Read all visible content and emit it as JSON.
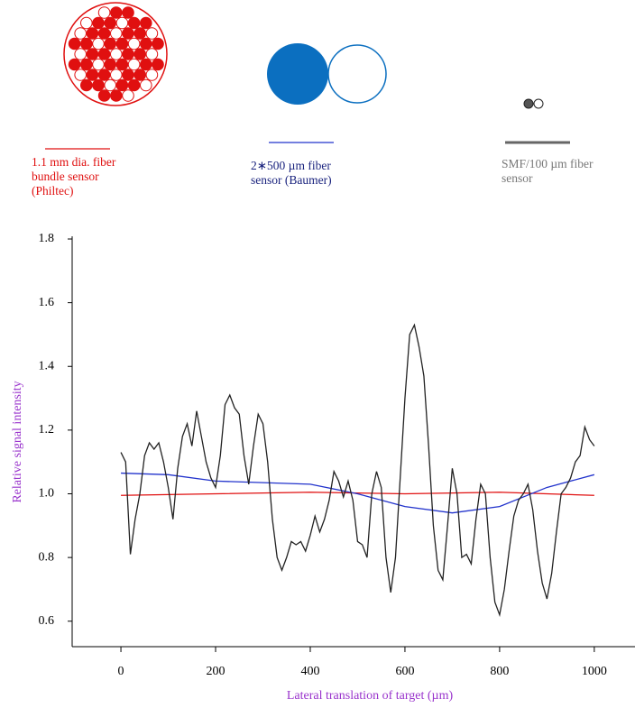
{
  "chart_data": {
    "type": "line",
    "xlabel": "Lateral translation of target (µm)",
    "ylabel": "Relative signal intensity",
    "xlim": [
      -103,
      1086
    ],
    "ylim": [
      0.52,
      1.8
    ],
    "xticks": [
      0,
      200,
      400,
      600,
      800,
      1000
    ],
    "yticks": [
      0.6,
      0.8,
      {
        "value": 1,
        "label": "1.0"
      },
      1.2,
      1.4,
      1.6,
      1.8
    ],
    "series": [
      {
        "name": "1.1 mm dia. fiber bundle  sensor (Philtec)",
        "color": "#e01010",
        "x": [
          0,
          200,
          400,
          600,
          800,
          1000
        ],
        "values": [
          0.995,
          1.0,
          1.005,
          1.0,
          1.005,
          0.995
        ]
      },
      {
        "name": "2∗500 µm fiber sensor (Baumer)",
        "color": "#2233cc",
        "x": [
          0,
          100,
          200,
          300,
          400,
          500,
          600,
          700,
          800,
          900,
          1000
        ],
        "values": [
          1.065,
          1.06,
          1.04,
          1.035,
          1.03,
          1.0,
          0.96,
          0.94,
          0.96,
          1.02,
          1.06
        ]
      },
      {
        "name": "SMF/100 µm fiber sensor",
        "color": "#222222",
        "x": [
          0,
          10,
          20,
          30,
          40,
          50,
          60,
          70,
          80,
          90,
          100,
          110,
          120,
          130,
          140,
          150,
          160,
          170,
          180,
          190,
          200,
          210,
          220,
          230,
          240,
          250,
          260,
          270,
          280,
          290,
          300,
          310,
          320,
          330,
          340,
          350,
          360,
          370,
          380,
          390,
          400,
          410,
          420,
          430,
          440,
          450,
          460,
          470,
          480,
          490,
          500,
          510,
          520,
          530,
          540,
          550,
          560,
          570,
          580,
          590,
          600,
          610,
          620,
          630,
          640,
          650,
          660,
          670,
          680,
          690,
          700,
          710,
          720,
          730,
          740,
          750,
          760,
          770,
          780,
          790,
          800,
          810,
          820,
          830,
          840,
          850,
          860,
          870,
          880,
          890,
          900,
          910,
          920,
          930,
          940,
          950,
          960,
          970,
          980,
          990,
          1000
        ],
        "values": [
          1.13,
          1.1,
          0.81,
          0.92,
          1.0,
          1.12,
          1.16,
          1.14,
          1.16,
          1.1,
          1.02,
          0.92,
          1.08,
          1.18,
          1.22,
          1.15,
          1.26,
          1.18,
          1.1,
          1.05,
          1.02,
          1.12,
          1.28,
          1.31,
          1.27,
          1.25,
          1.12,
          1.03,
          1.15,
          1.25,
          1.22,
          1.1,
          0.92,
          0.8,
          0.76,
          0.8,
          0.85,
          0.84,
          0.85,
          0.82,
          0.87,
          0.93,
          0.88,
          0.92,
          0.98,
          1.07,
          1.04,
          0.99,
          1.04,
          0.98,
          0.85,
          0.84,
          0.8,
          1.0,
          1.07,
          1.02,
          0.8,
          0.69,
          0.8,
          1.05,
          1.3,
          1.5,
          1.53,
          1.46,
          1.37,
          1.15,
          0.9,
          0.76,
          0.73,
          0.9,
          1.08,
          1.0,
          0.8,
          0.81,
          0.78,
          0.92,
          1.03,
          1.0,
          0.8,
          0.66,
          0.62,
          0.7,
          0.82,
          0.93,
          0.98,
          1.0,
          1.03,
          0.95,
          0.82,
          0.72,
          0.67,
          0.75,
          0.88,
          1.0,
          1.02,
          1.05,
          1.1,
          1.12,
          1.21,
          1.17,
          1.15
        ]
      }
    ]
  }
}
